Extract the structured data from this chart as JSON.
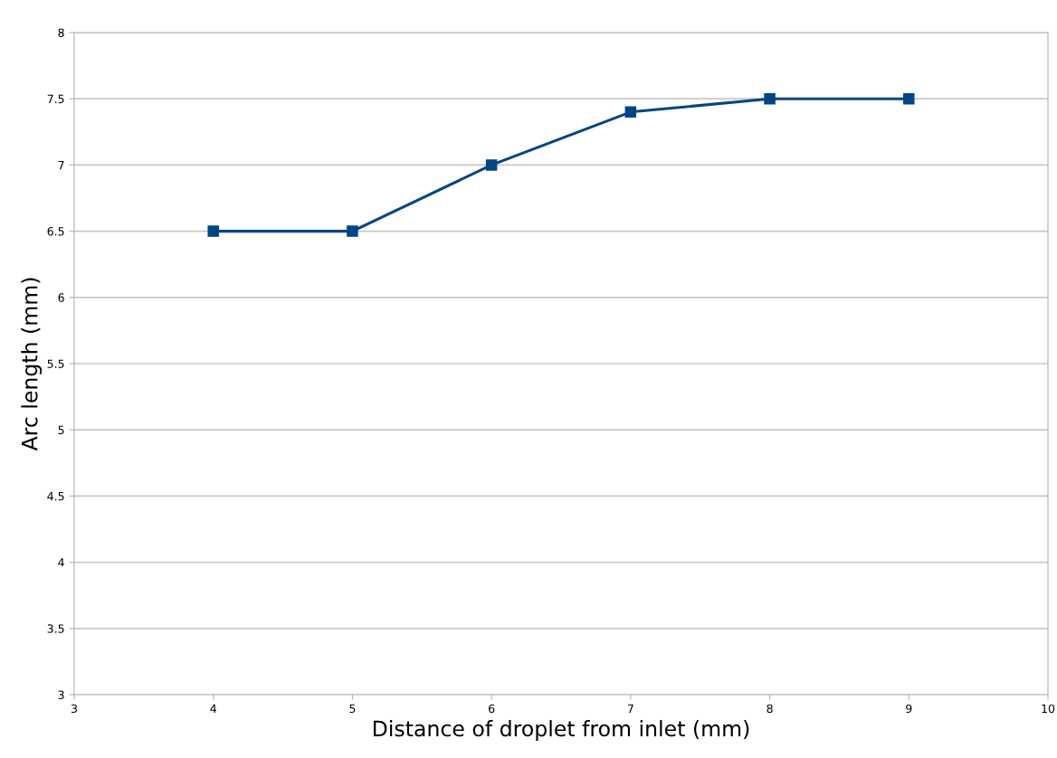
{
  "chart_data": {
    "type": "line",
    "xlabel": "Distance of droplet from inlet (mm)",
    "ylabel": "Arc length (mm)",
    "x": [
      4,
      5,
      6,
      7,
      8,
      9
    ],
    "series": [
      {
        "color": "#004586",
        "values": [
          6.5,
          6.5,
          7.0,
          7.4,
          7.5,
          7.5
        ]
      }
    ],
    "xlim": [
      3,
      10
    ],
    "xticks": [
      3,
      4,
      5,
      6,
      7,
      8,
      9,
      10
    ],
    "ylim": [
      3,
      8
    ],
    "yticks": [
      3,
      3.5,
      4,
      4.5,
      5,
      5.5,
      6,
      6.5,
      7,
      7.5,
      8
    ],
    "grid": "y",
    "marker": "square",
    "line_style": "solid"
  }
}
